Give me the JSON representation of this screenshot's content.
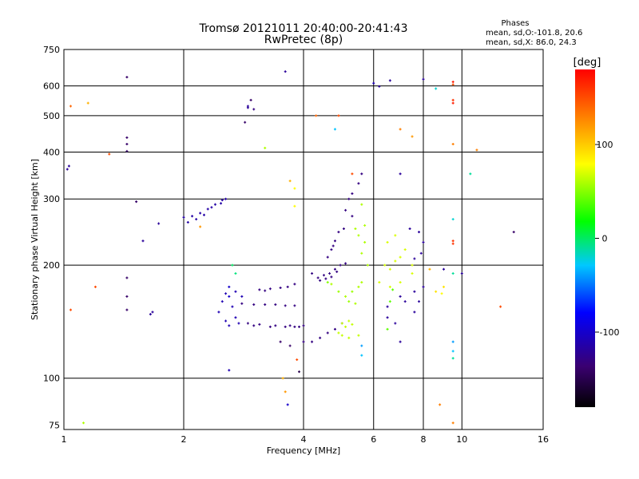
{
  "chart_data": {
    "type": "scatter",
    "title": "Tromsø 20121011 20:40:00-20:41:43",
    "subtitle": "RwPretec (8p)",
    "xlabel": "Frequency [MHz]",
    "ylabel": "Stationary phase Virtual Height [km]",
    "x_scale": "log",
    "y_scale": "log",
    "xlim": [
      1,
      16
    ],
    "ylim": [
      73,
      750
    ],
    "x_ticks": [
      1,
      2,
      4,
      6,
      8,
      10,
      16
    ],
    "y_ticks": [
      75,
      100,
      200,
      300,
      400,
      500,
      600,
      750
    ],
    "grid": true,
    "stats": {
      "header": "Phases",
      "line1": "mean, sd,O:-101.8, 20.6",
      "line2": "mean, sd,X:  86.0, 24.3"
    },
    "colorbar": {
      "label": "[deg]",
      "range": [
        -180,
        180
      ],
      "ticks": [
        100,
        0,
        -100
      ]
    },
    "series": [
      {
        "points": [
          [
            1.02,
            360,
            -120
          ],
          [
            1.03,
            367,
            -120
          ],
          [
            1.04,
            530,
            140
          ],
          [
            1.04,
            152,
            150
          ],
          [
            1.12,
            76,
            60
          ],
          [
            1.15,
            540,
            110
          ],
          [
            1.2,
            175,
            150
          ],
          [
            1.3,
            395,
            150
          ],
          [
            1.44,
            633,
            -140
          ],
          [
            1.44,
            402,
            -140
          ],
          [
            1.44,
            420,
            -140
          ],
          [
            1.44,
            437,
            -140
          ],
          [
            1.44,
            185,
            -140
          ],
          [
            1.44,
            165,
            -140
          ],
          [
            1.44,
            152,
            -140
          ],
          [
            1.52,
            295,
            -140
          ],
          [
            1.58,
            232,
            -120
          ],
          [
            1.65,
            148,
            -120
          ],
          [
            1.67,
            150,
            -120
          ],
          [
            1.73,
            258,
            -120
          ],
          [
            2.0,
            268,
            -115
          ],
          [
            2.1,
            270,
            -115
          ],
          [
            2.2,
            275,
            -115
          ],
          [
            2.3,
            282,
            -115
          ],
          [
            2.4,
            290,
            -115
          ],
          [
            2.5,
            298,
            -115
          ],
          [
            2.05,
            260,
            -115
          ],
          [
            2.15,
            265,
            -115
          ],
          [
            2.25,
            272,
            -115
          ],
          [
            2.35,
            285,
            -115
          ],
          [
            2.48,
            292,
            -115
          ],
          [
            2.55,
            300,
            -115
          ],
          [
            2.2,
            253,
            120
          ],
          [
            2.6,
            105,
            -110
          ],
          [
            2.85,
            480,
            -140
          ],
          [
            2.9,
            525,
            -120
          ],
          [
            2.9,
            530,
            -120
          ],
          [
            2.95,
            550,
            -140
          ],
          [
            3.0,
            520,
            -130
          ],
          [
            3.2,
            410,
            60
          ],
          [
            3.6,
            655,
            -120
          ],
          [
            3.7,
            335,
            110
          ],
          [
            3.8,
            320,
            80
          ],
          [
            3.8,
            287,
            80
          ],
          [
            2.65,
            200,
            0
          ],
          [
            2.7,
            190,
            -5
          ],
          [
            2.6,
            175,
            -100
          ],
          [
            2.6,
            165,
            -100
          ],
          [
            2.65,
            155,
            -110
          ],
          [
            2.7,
            145,
            -110
          ],
          [
            2.75,
            140,
            -110
          ],
          [
            2.55,
            168,
            -110
          ],
          [
            2.5,
            160,
            -110
          ],
          [
            2.45,
            150,
            -110
          ],
          [
            2.55,
            142,
            -110
          ],
          [
            2.6,
            138,
            -110
          ],
          [
            3.0,
            138,
            -130
          ],
          [
            3.3,
            137,
            -130
          ],
          [
            3.6,
            137,
            -130
          ],
          [
            3.9,
            137,
            -130
          ],
          [
            2.9,
            140,
            -130
          ],
          [
            3.1,
            139,
            -130
          ],
          [
            3.4,
            138,
            -130
          ],
          [
            3.7,
            138,
            -130
          ],
          [
            4.0,
            138,
            -130
          ],
          [
            3.8,
            137,
            -130
          ],
          [
            3.0,
            157,
            -130
          ],
          [
            3.4,
            157,
            -130
          ],
          [
            3.8,
            156,
            -130
          ],
          [
            2.8,
            158,
            -130
          ],
          [
            3.2,
            157,
            -130
          ],
          [
            3.6,
            156,
            -130
          ],
          [
            3.1,
            172,
            -130
          ],
          [
            3.3,
            173,
            -130
          ],
          [
            3.65,
            175,
            -130
          ],
          [
            3.8,
            178,
            -130
          ],
          [
            3.2,
            171,
            -130
          ],
          [
            3.5,
            174,
            -130
          ],
          [
            2.7,
            170,
            -110
          ],
          [
            2.8,
            165,
            -110
          ],
          [
            3.5,
            125,
            -140
          ],
          [
            3.7,
            122,
            -140
          ],
          [
            4.0,
            125,
            -130
          ],
          [
            4.2,
            125,
            -130
          ],
          [
            4.4,
            128,
            -130
          ],
          [
            4.6,
            132,
            -130
          ],
          [
            4.8,
            135,
            -130
          ],
          [
            5.0,
            140,
            -130
          ],
          [
            3.85,
            112,
            150
          ],
          [
            3.9,
            104,
            -150
          ],
          [
            3.6,
            92,
            120
          ],
          [
            3.65,
            85,
            -100
          ],
          [
            3.55,
            100,
            110
          ],
          [
            4.2,
            190,
            -130
          ],
          [
            4.35,
            185,
            -130
          ],
          [
            4.5,
            188,
            -130
          ],
          [
            4.65,
            190,
            -130
          ],
          [
            4.8,
            195,
            -130
          ],
          [
            4.95,
            200,
            -130
          ],
          [
            5.1,
            202,
            -130
          ],
          [
            4.4,
            182,
            -130
          ],
          [
            4.55,
            184,
            -130
          ],
          [
            4.7,
            186,
            -130
          ],
          [
            4.85,
            192,
            -130
          ],
          [
            4.6,
            210,
            -130
          ],
          [
            4.7,
            220,
            -130
          ],
          [
            4.8,
            232,
            -130
          ],
          [
            4.9,
            245,
            -130
          ],
          [
            5.05,
            250,
            -130
          ],
          [
            4.75,
            225,
            -130
          ],
          [
            5.1,
            280,
            -130
          ],
          [
            5.2,
            300,
            -130
          ],
          [
            5.3,
            310,
            -130
          ],
          [
            5.5,
            330,
            -130
          ],
          [
            5.6,
            350,
            -130
          ],
          [
            5.3,
            270,
            -130
          ],
          [
            4.3,
            500,
            140
          ],
          [
            4.9,
            500,
            150
          ],
          [
            4.8,
            460,
            -30
          ],
          [
            5.3,
            350,
            150
          ],
          [
            6.0,
            610,
            -110
          ],
          [
            6.2,
            598,
            -120
          ],
          [
            6.6,
            620,
            -120
          ],
          [
            7.0,
            350,
            -120
          ],
          [
            7.0,
            460,
            130
          ],
          [
            7.5,
            440,
            120
          ],
          [
            8.0,
            625,
            -120
          ],
          [
            8.6,
            590,
            -20
          ],
          [
            9.5,
            605,
            150
          ],
          [
            9.5,
            615,
            170
          ],
          [
            9.5,
            550,
            160
          ],
          [
            9.5,
            540,
            170
          ],
          [
            9.5,
            420,
            130
          ],
          [
            9.5,
            265,
            -20
          ],
          [
            9.5,
            232,
            160
          ],
          [
            9.5,
            228,
            160
          ],
          [
            9.5,
            190,
            -10
          ],
          [
            9.5,
            125,
            -40
          ],
          [
            9.5,
            118,
            -30
          ],
          [
            9.5,
            113,
            -10
          ],
          [
            9.5,
            76,
            130
          ],
          [
            8.8,
            85,
            130
          ],
          [
            10.5,
            350,
            -10
          ],
          [
            10.9,
            405,
            130
          ],
          [
            12.5,
            155,
            150
          ],
          [
            13.5,
            245,
            -140
          ],
          [
            10.0,
            190,
            -120
          ],
          [
            9.0,
            195,
            -120
          ],
          [
            4.6,
            180,
            50
          ],
          [
            4.7,
            178,
            60
          ],
          [
            4.9,
            170,
            55
          ],
          [
            5.1,
            165,
            60
          ],
          [
            5.3,
            170,
            55
          ],
          [
            5.5,
            175,
            60
          ],
          [
            5.2,
            160,
            55
          ],
          [
            5.4,
            158,
            60
          ],
          [
            5.6,
            180,
            60
          ],
          [
            5.8,
            200,
            60
          ],
          [
            5.6,
            215,
            60
          ],
          [
            5.7,
            230,
            60
          ],
          [
            5.5,
            240,
            60
          ],
          [
            5.7,
            255,
            60
          ],
          [
            5.6,
            290,
            60
          ],
          [
            5.4,
            250,
            60
          ],
          [
            5.0,
            140,
            65
          ],
          [
            5.1,
            137,
            65
          ],
          [
            5.2,
            142,
            65
          ],
          [
            5.3,
            139,
            65
          ],
          [
            4.9,
            132,
            65
          ],
          [
            5.0,
            130,
            65
          ],
          [
            5.2,
            128,
            65
          ],
          [
            5.5,
            130,
            65
          ],
          [
            6.4,
            200,
            70
          ],
          [
            6.6,
            195,
            70
          ],
          [
            6.8,
            205,
            70
          ],
          [
            7.0,
            210,
            70
          ],
          [
            6.5,
            230,
            70
          ],
          [
            6.8,
            240,
            70
          ],
          [
            7.2,
            220,
            70
          ],
          [
            7.5,
            200,
            70
          ],
          [
            6.2,
            180,
            70
          ],
          [
            6.6,
            175,
            70
          ],
          [
            7.0,
            180,
            70
          ],
          [
            7.5,
            190,
            70
          ],
          [
            7.0,
            165,
            -120
          ],
          [
            7.2,
            160,
            -120
          ],
          [
            7.6,
            170,
            -120
          ],
          [
            8.0,
            175,
            -120
          ],
          [
            7.8,
            160,
            -120
          ],
          [
            7.6,
            150,
            -120
          ],
          [
            7.0,
            125,
            -120
          ],
          [
            6.8,
            140,
            -120
          ],
          [
            6.5,
            155,
            -120
          ],
          [
            6.5,
            145,
            -120
          ],
          [
            7.4,
            250,
            -120
          ],
          [
            7.8,
            245,
            -120
          ],
          [
            8.0,
            230,
            -120
          ],
          [
            7.9,
            215,
            -120
          ],
          [
            7.6,
            208,
            -120
          ],
          [
            8.3,
            195,
            110
          ],
          [
            8.6,
            170,
            90
          ],
          [
            8.9,
            168,
            80
          ],
          [
            9.0,
            175,
            90
          ],
          [
            5.6,
            115,
            -30
          ],
          [
            5.6,
            122,
            -40
          ],
          [
            6.5,
            135,
            40
          ],
          [
            6.6,
            160,
            40
          ],
          [
            6.7,
            172,
            40
          ]
        ]
      }
    ]
  }
}
